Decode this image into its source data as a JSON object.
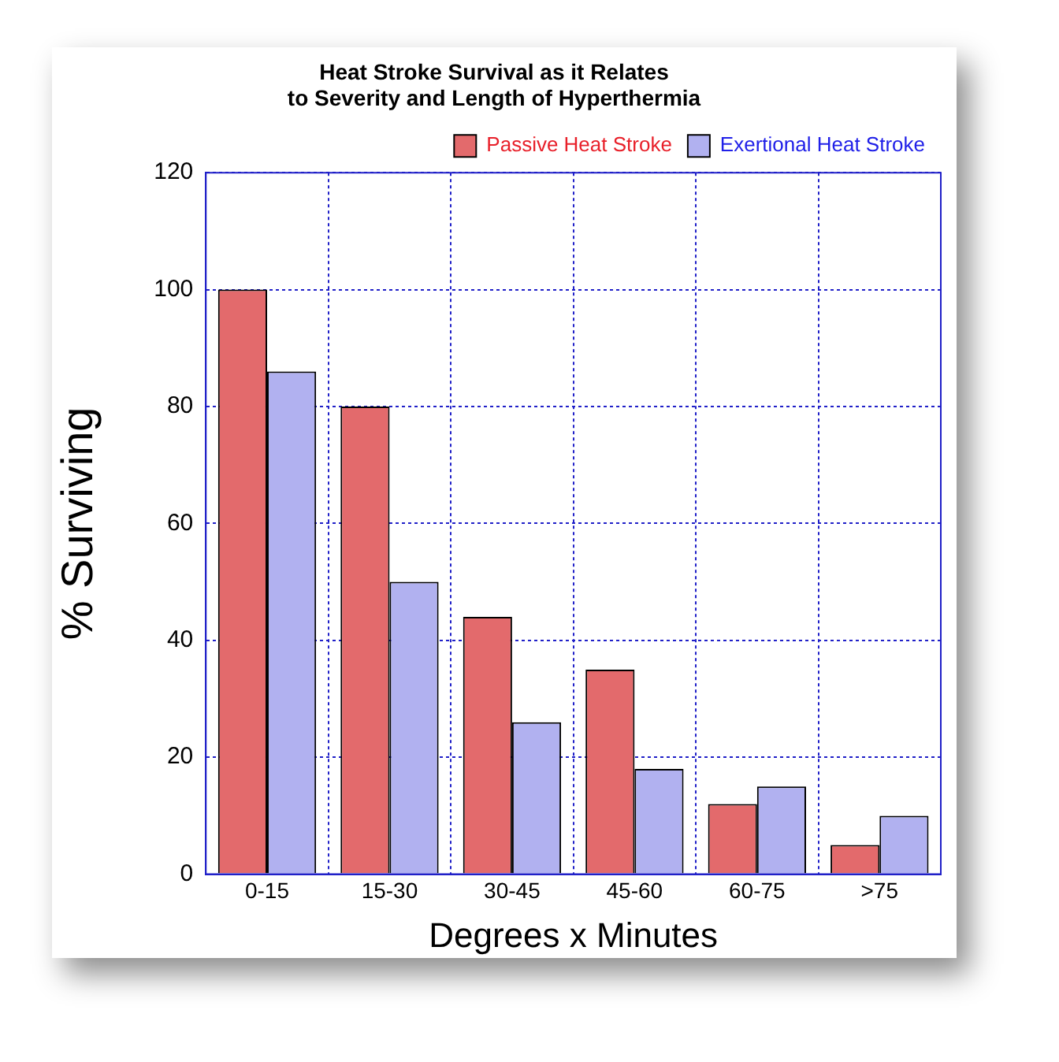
{
  "chart_data": {
    "type": "bar",
    "title": [
      "Heat Stroke Survival as it Relates",
      "to Severity and Length of Hyperthermia"
    ],
    "xlabel": "Degrees x Minutes",
    "ylabel": "% Surviving",
    "categories": [
      "0-15",
      "15-30",
      "30-45",
      "45-60",
      "60-75",
      ">75"
    ],
    "series": [
      {
        "name": "Passive Heat Stroke",
        "color": "#e36a6c",
        "values": [
          100,
          80,
          44,
          35,
          12,
          5
        ]
      },
      {
        "name": "Exertional Heat Stroke",
        "color": "#b1b1f0",
        "values": [
          86,
          50,
          26,
          18,
          15,
          10
        ]
      }
    ],
    "ylim": [
      0,
      120
    ],
    "yticks": [
      0,
      20,
      40,
      60,
      80,
      100,
      120
    ],
    "grid": true,
    "legend": "top right"
  }
}
